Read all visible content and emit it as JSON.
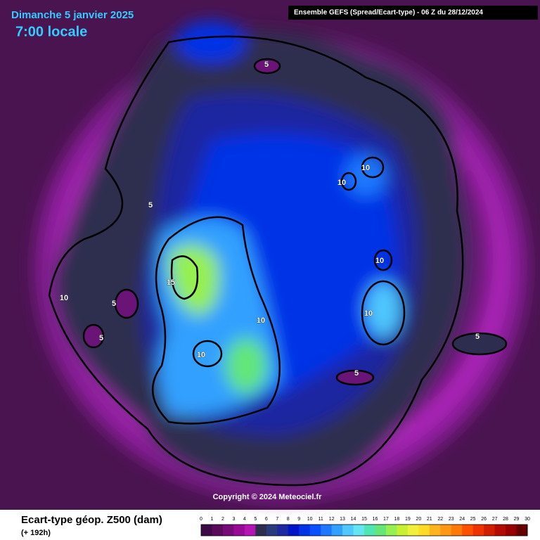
{
  "header": {
    "date": "Dimanche 5 janvier 2025",
    "time": "7:00 locale",
    "model": "Ensemble GEFS  (Spread/Ecart-type) - 06 Z du 28/12/2024",
    "copyright": "Copyright © 2024 Meteociel.fr"
  },
  "map": {
    "contour_labels": [
      5,
      5,
      10,
      10,
      10,
      10,
      10,
      5,
      5,
      15,
      10,
      10,
      5,
      5
    ]
  },
  "legend": {
    "title": "Ecart-type géop. Z500 (dam)",
    "lead": "(+ 192h)",
    "ticks": [
      0,
      1,
      2,
      3,
      4,
      5,
      6,
      7,
      8,
      9,
      10,
      11,
      12,
      13,
      14,
      15,
      16,
      17,
      18,
      19,
      20,
      21,
      22,
      23,
      24,
      25,
      26,
      27,
      28,
      29,
      30
    ],
    "colors": [
      "#3c0a46",
      "#5a0a5a",
      "#780a78",
      "#960a96",
      "#b414b4",
      "#2d2d50",
      "#2a3a7a",
      "#1e28a0",
      "#0014c8",
      "#0032e6",
      "#0a50ff",
      "#1e78ff",
      "#32a0ff",
      "#50c8ff",
      "#64e6f0",
      "#50e6b4",
      "#64e678",
      "#96f050",
      "#c8f032",
      "#f0f03c",
      "#ffdc28",
      "#ffb41e",
      "#ff9614",
      "#ff780a",
      "#ff5000",
      "#f03200",
      "#d21e00",
      "#b40a00",
      "#960000",
      "#640000"
    ]
  }
}
